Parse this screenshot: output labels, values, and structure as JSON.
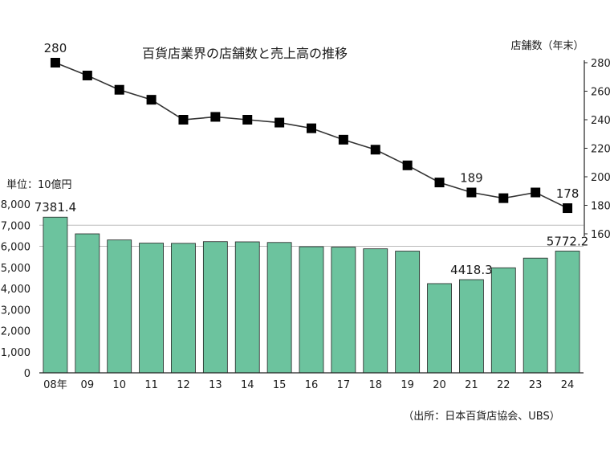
{
  "chart_data": {
    "type": "bar+line",
    "title": "百貨店業界の店舗数と売上高の推移",
    "source": "（出所：日本百貨店協会、UBS）",
    "categories": [
      "08年",
      "09",
      "10",
      "11",
      "12",
      "13",
      "14",
      "15",
      "16",
      "17",
      "18",
      "19",
      "20",
      "21",
      "22",
      "23",
      "24"
    ],
    "bar_series": {
      "unit_label": "単位：10億円",
      "values": [
        7381.4,
        6590,
        6300,
        6150,
        6140,
        6220,
        6210,
        6180,
        5980,
        5960,
        5880,
        5770,
        4230,
        4418.3,
        4980,
        5440,
        5772.2
      ],
      "color": "#6cc39e",
      "ylim": [
        0,
        8000
      ],
      "ticks": [
        "0",
        "1,000",
        "2,000",
        "3,000",
        "4,000",
        "5,000",
        "6,000",
        "7,000",
        "8,000"
      ],
      "labels": [
        {
          "index": 0,
          "text": "7381.4"
        },
        {
          "index": 13,
          "text": "4418.3"
        },
        {
          "index": 16,
          "text": "5772.2"
        }
      ]
    },
    "line_series": {
      "axis_label": "店舗数（年末）",
      "values": [
        280,
        271,
        261,
        254,
        240,
        242,
        240,
        238,
        234,
        226,
        219,
        208,
        196,
        189,
        185,
        189,
        178
      ],
      "ylim": [
        160,
        280
      ],
      "ticks": [
        "160",
        "180",
        "200",
        "220",
        "240",
        "260",
        "280"
      ],
      "labels": [
        {
          "index": 0,
          "text": "280"
        },
        {
          "index": 13,
          "text": "189"
        },
        {
          "index": 16,
          "text": "178"
        }
      ]
    }
  }
}
